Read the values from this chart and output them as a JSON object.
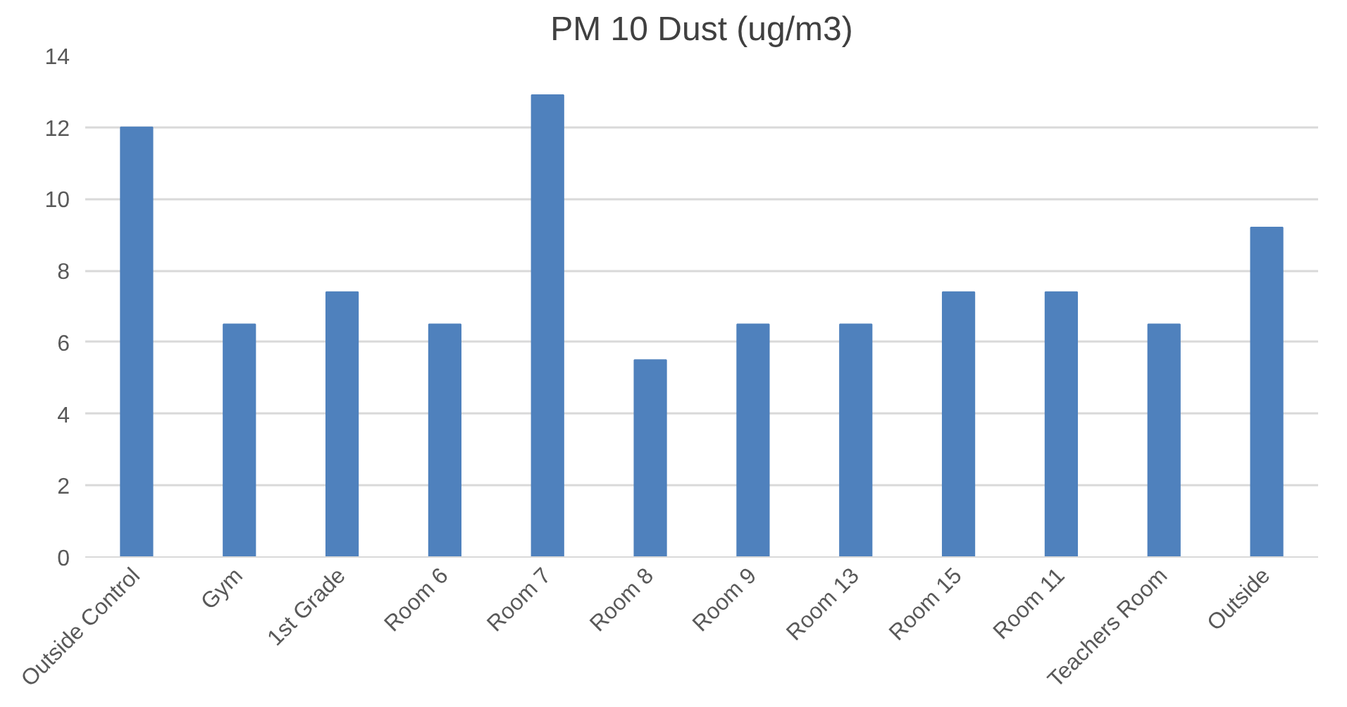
{
  "chart_data": {
    "type": "bar",
    "title": "PM 10 Dust (ug/m3)",
    "categories": [
      "Outside Control",
      "Gym",
      "1st Grade",
      "Room 6",
      "Room 7",
      "Room 8",
      "Room 9",
      "Room 13",
      "Room 15",
      "Room 11",
      "Teachers Room",
      "Outside"
    ],
    "values": [
      12,
      6.5,
      7.4,
      6.5,
      12.9,
      5.5,
      6.5,
      6.5,
      7.4,
      7.4,
      6.5,
      9.2
    ],
    "color": "#4f81bd",
    "ylim": [
      0,
      14
    ],
    "yticks": [
      0,
      2,
      4,
      6,
      8,
      10,
      12,
      14
    ],
    "grid": "y"
  }
}
